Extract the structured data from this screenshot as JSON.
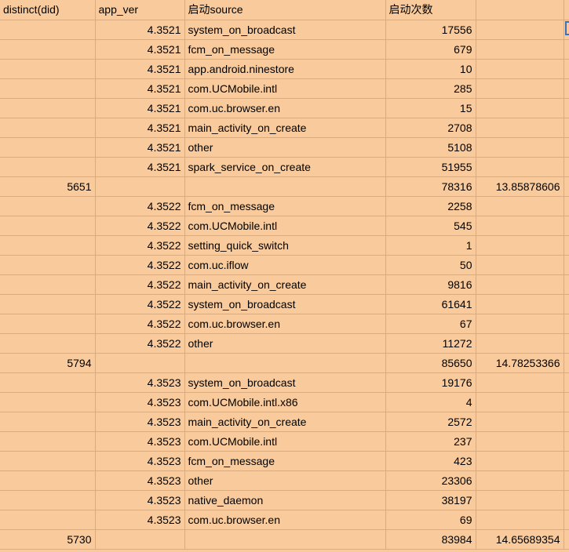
{
  "sheet": {
    "headers": [
      "distinct(did)",
      "app_ver",
      "启动source",
      "启动次数",
      ""
    ],
    "rows": [
      [
        "",
        "4.3521",
        "system_on_broadcast",
        "17556",
        ""
      ],
      [
        "",
        "4.3521",
        "fcm_on_message",
        "679",
        ""
      ],
      [
        "",
        "4.3521",
        "app.android.ninestore",
        "10",
        ""
      ],
      [
        "",
        "4.3521",
        "com.UCMobile.intl",
        "285",
        ""
      ],
      [
        "",
        "4.3521",
        "com.uc.browser.en",
        "15",
        ""
      ],
      [
        "",
        "4.3521",
        "main_activity_on_create",
        "2708",
        ""
      ],
      [
        "",
        "4.3521",
        "other",
        "5108",
        ""
      ],
      [
        "",
        "4.3521",
        "spark_service_on_create",
        "51955",
        ""
      ],
      [
        "5651",
        "",
        "",
        "78316",
        "13.85878606"
      ],
      [
        "",
        "4.3522",
        "fcm_on_message",
        "2258",
        ""
      ],
      [
        "",
        "4.3522",
        "com.UCMobile.intl",
        "545",
        ""
      ],
      [
        "",
        "4.3522",
        "setting_quick_switch",
        "1",
        ""
      ],
      [
        "",
        "4.3522",
        "com.uc.iflow",
        "50",
        ""
      ],
      [
        "",
        "4.3522",
        "main_activity_on_create",
        "9816",
        ""
      ],
      [
        "",
        "4.3522",
        "system_on_broadcast",
        "61641",
        ""
      ],
      [
        "",
        "4.3522",
        "com.uc.browser.en",
        "67",
        ""
      ],
      [
        "",
        "4.3522",
        "other",
        "11272",
        ""
      ],
      [
        "5794",
        "",
        "",
        "85650",
        "14.78253366"
      ],
      [
        "",
        "4.3523",
        "system_on_broadcast",
        "19176",
        ""
      ],
      [
        "",
        "4.3523",
        "com.UCMobile.intl.x86",
        "4",
        ""
      ],
      [
        "",
        "4.3523",
        "main_activity_on_create",
        "2572",
        ""
      ],
      [
        "",
        "4.3523",
        "com.UCMobile.intl",
        "237",
        ""
      ],
      [
        "",
        "4.3523",
        "fcm_on_message",
        "423",
        ""
      ],
      [
        "",
        "4.3523",
        "other",
        "23306",
        ""
      ],
      [
        "",
        "4.3523",
        "native_daemon",
        "38197",
        ""
      ],
      [
        "",
        "4.3523",
        "com.uc.browser.en",
        "69",
        ""
      ],
      [
        "5730",
        "",
        "",
        "83984",
        "14.65689354"
      ]
    ],
    "colors": {
      "cell_fill": "#f9cb9c",
      "grid_line": "#d9ab7e",
      "selection": "#3c73b8"
    }
  }
}
